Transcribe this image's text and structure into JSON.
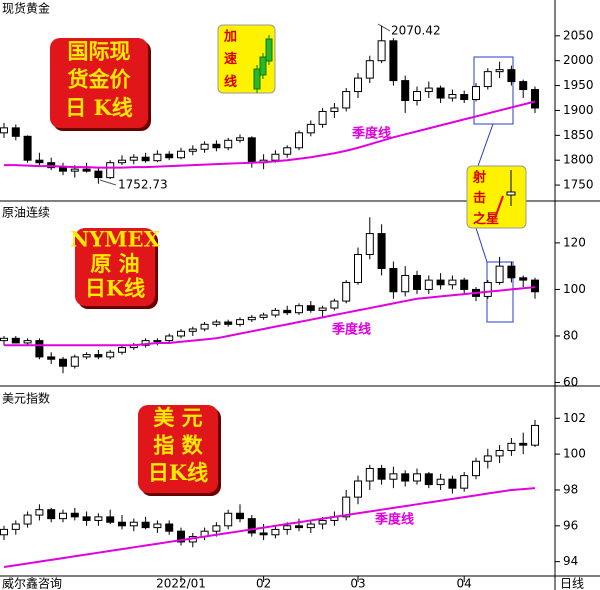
{
  "chart_data": [
    {
      "type": "candlestick",
      "title": "现货黄金",
      "badge": [
        "国际现",
        "货金价",
        "日 K线"
      ],
      "notes": [
        [
          "加",
          "速",
          "线"
        ],
        [
          "射",
          "击",
          "之星"
        ]
      ],
      "ylim": [
        1718,
        2122
      ],
      "yticks": [
        1750,
        1800,
        1850,
        1900,
        1950,
        2000,
        2050
      ],
      "up_color": "#ffffff",
      "down_color": "#000000",
      "ohlc": [
        [
          1855,
          1875,
          1845,
          1865
        ],
        [
          1865,
          1872,
          1840,
          1848
        ],
        [
          1848,
          1850,
          1795,
          1800
        ],
        [
          1800,
          1815,
          1790,
          1795
        ],
        [
          1795,
          1805,
          1780,
          1785
        ],
        [
          1785,
          1795,
          1770,
          1778
        ],
        [
          1778,
          1790,
          1765,
          1782
        ],
        [
          1782,
          1795,
          1775,
          1778
        ],
        [
          1778,
          1785,
          1752.73,
          1765
        ],
        [
          1765,
          1800,
          1762,
          1795
        ],
        [
          1795,
          1810,
          1790,
          1800
        ],
        [
          1800,
          1812,
          1792,
          1806
        ],
        [
          1806,
          1815,
          1795,
          1799
        ],
        [
          1799,
          1820,
          1796,
          1812
        ],
        [
          1812,
          1818,
          1800,
          1805
        ],
        [
          1805,
          1825,
          1802,
          1818
        ],
        [
          1818,
          1830,
          1810,
          1822
        ],
        [
          1822,
          1838,
          1815,
          1832
        ],
        [
          1832,
          1840,
          1818,
          1825
        ],
        [
          1825,
          1845,
          1820,
          1840
        ],
        [
          1840,
          1852,
          1835,
          1845
        ],
        [
          1845,
          1848,
          1785,
          1795
        ],
        [
          1795,
          1812,
          1782,
          1800
        ],
        [
          1800,
          1820,
          1795,
          1812
        ],
        [
          1812,
          1830,
          1805,
          1825
        ],
        [
          1825,
          1860,
          1820,
          1855
        ],
        [
          1855,
          1880,
          1848,
          1872
        ],
        [
          1872,
          1905,
          1865,
          1898
        ],
        [
          1898,
          1915,
          1885,
          1905
        ],
        [
          1905,
          1945,
          1898,
          1938
        ],
        [
          1938,
          1975,
          1925,
          1965
        ],
        [
          1965,
          2010,
          1955,
          2000
        ],
        [
          2000,
          2070.42,
          1995,
          2040
        ],
        [
          2040,
          2045,
          1950,
          1960
        ],
        [
          1960,
          1970,
          1895,
          1920
        ],
        [
          1920,
          1948,
          1910,
          1938
        ],
        [
          1938,
          1958,
          1925,
          1945
        ],
        [
          1945,
          1950,
          1915,
          1925
        ],
        [
          1925,
          1942,
          1918,
          1932
        ],
        [
          1932,
          1940,
          1915,
          1922
        ],
        [
          1922,
          1955,
          1918,
          1948
        ],
        [
          1948,
          1985,
          1942,
          1978
        ],
        [
          1978,
          1998,
          1965,
          1982
        ],
        [
          1982,
          1990,
          1950,
          1958
        ],
        [
          1958,
          1962,
          1925,
          1942
        ],
        [
          1942,
          1948,
          1895,
          1905
        ]
      ],
      "series": [
        {
          "name": "季度线",
          "color": "#e000e0",
          "values": [
            1790,
            1790,
            1789,
            1788,
            1788,
            1787,
            1786,
            1786,
            1785,
            1785,
            1785,
            1786,
            1786,
            1787,
            1788,
            1789,
            1790,
            1791,
            1792,
            1793,
            1794,
            1795,
            1796,
            1798,
            1800,
            1803,
            1806,
            1810,
            1814,
            1819,
            1825,
            1832,
            1839,
            1846,
            1852,
            1858,
            1864,
            1870,
            1876,
            1882,
            1888,
            1894,
            1900,
            1906,
            1912,
            1918
          ]
        }
      ]
    },
    {
      "type": "candlestick",
      "title": "原油连续",
      "badge": [
        "NYMEX",
        "原 油",
        "日K线"
      ],
      "ylim": [
        58.5,
        138
      ],
      "yticks": [
        60,
        80,
        100,
        120
      ],
      "up_color": "#ffffff",
      "down_color": "#000000",
      "ohlc": [
        [
          78,
          80,
          76,
          79
        ],
        [
          79,
          80,
          77,
          77
        ],
        [
          77,
          79,
          76,
          78
        ],
        [
          78,
          79,
          70,
          71
        ],
        [
          71,
          73,
          68,
          70
        ],
        [
          70,
          71,
          64,
          67
        ],
        [
          67,
          72,
          66,
          71
        ],
        [
          71,
          73,
          70,
          72
        ],
        [
          72,
          74,
          70,
          71
        ],
        [
          71,
          74,
          70,
          73
        ],
        [
          73,
          76,
          72,
          75
        ],
        [
          75,
          77,
          74,
          76
        ],
        [
          76,
          79,
          75,
          78
        ],
        [
          78,
          79,
          76,
          78
        ],
        [
          78,
          81,
          77,
          80
        ],
        [
          80,
          83,
          79,
          82
        ],
        [
          82,
          84,
          80,
          83
        ],
        [
          83,
          86,
          82,
          85
        ],
        [
          85,
          87,
          84,
          86
        ],
        [
          86,
          87,
          84,
          85
        ],
        [
          85,
          88,
          84,
          87
        ],
        [
          87,
          89,
          86,
          88
        ],
        [
          88,
          90,
          87,
          89
        ],
        [
          89,
          92,
          88,
          91
        ],
        [
          91,
          93,
          89,
          90
        ],
        [
          90,
          94,
          89,
          93
        ],
        [
          93,
          95,
          90,
          91
        ],
        [
          91,
          93,
          88,
          92
        ],
        [
          92,
          96,
          91,
          95
        ],
        [
          95,
          104,
          94,
          103
        ],
        [
          103,
          118,
          102,
          115
        ],
        [
          115,
          131,
          113,
          124
        ],
        [
          124,
          128,
          106,
          109
        ],
        [
          109,
          112,
          96,
          99
        ],
        [
          99,
          110,
          97,
          106
        ],
        [
          106,
          108,
          98,
          100
        ],
        [
          100,
          106,
          98,
          104
        ],
        [
          104,
          107,
          100,
          102
        ],
        [
          102,
          106,
          100,
          104
        ],
        [
          104,
          105,
          98,
          100
        ],
        [
          100,
          101,
          95,
          97
        ],
        [
          97,
          104,
          96,
          103
        ],
        [
          103,
          114,
          102,
          110
        ],
        [
          110,
          112,
          103,
          105
        ],
        [
          105,
          106,
          101,
          104
        ],
        [
          104,
          105,
          96,
          99
        ]
      ],
      "series": [
        {
          "name": "季度线",
          "color": "#e000e0",
          "values": [
            76,
            76,
            76,
            76,
            76,
            76,
            76,
            76,
            76,
            76,
            76,
            76,
            76.5,
            77,
            77,
            77.5,
            78,
            78.5,
            79,
            80,
            81,
            82,
            83,
            84,
            85,
            86,
            87,
            88,
            89,
            90,
            91,
            92,
            93,
            94,
            95,
            96,
            96.5,
            97,
            97.5,
            98,
            98.5,
            99,
            99.5,
            100,
            100.5,
            101
          ]
        }
      ]
    },
    {
      "type": "candlestick",
      "title": "美元指数",
      "badge": [
        "美  元",
        "指  数",
        "日K线"
      ],
      "ylim": [
        93.2,
        103.8
      ],
      "yticks": [
        94,
        96,
        98,
        100,
        102
      ],
      "up_color": "#ffffff",
      "down_color": "#000000",
      "categories": [
        null,
        null,
        null,
        null,
        null,
        null,
        null,
        null,
        null,
        null,
        null,
        null,
        null,
        null,
        null,
        "2022/01",
        null,
        null,
        null,
        null,
        null,
        null,
        "02",
        null,
        null,
        null,
        null,
        null,
        null,
        null,
        "03",
        null,
        null,
        null,
        null,
        null,
        null,
        null,
        null,
        "04",
        null,
        null,
        null,
        null,
        null,
        null
      ],
      "xlabel": "日线",
      "source": "威尔鑫咨询",
      "ohlc": [
        [
          95.5,
          96.0,
          95.2,
          95.8
        ],
        [
          95.8,
          96.3,
          95.5,
          96.1
        ],
        [
          96.1,
          96.8,
          95.9,
          96.6
        ],
        [
          96.6,
          97.2,
          96.3,
          96.9
        ],
        [
          96.9,
          97.0,
          96.2,
          96.4
        ],
        [
          96.4,
          96.9,
          96.2,
          96.7
        ],
        [
          96.7,
          97.0,
          96.3,
          96.5
        ],
        [
          96.5,
          96.8,
          96.0,
          96.3
        ],
        [
          96.3,
          96.7,
          96.0,
          96.5
        ],
        [
          96.5,
          96.9,
          96.1,
          96.2
        ],
        [
          96.2,
          96.6,
          95.8,
          96.0
        ],
        [
          96.0,
          96.4,
          95.7,
          96.2
        ],
        [
          96.2,
          96.5,
          95.8,
          95.9
        ],
        [
          95.9,
          96.3,
          95.6,
          96.1
        ],
        [
          96.1,
          96.3,
          95.5,
          95.7
        ],
        [
          95.7,
          95.9,
          94.9,
          95.1
        ],
        [
          95.1,
          95.6,
          94.8,
          95.4
        ],
        [
          95.4,
          95.9,
          95.2,
          95.7
        ],
        [
          95.7,
          96.2,
          95.4,
          96.0
        ],
        [
          96.0,
          96.9,
          95.8,
          96.7
        ],
        [
          96.7,
          97.2,
          96.2,
          96.4
        ],
        [
          96.4,
          96.6,
          95.4,
          95.6
        ],
        [
          95.6,
          96.1,
          95.2,
          95.5
        ],
        [
          95.5,
          96.0,
          95.3,
          95.8
        ],
        [
          95.8,
          96.2,
          95.5,
          96.0
        ],
        [
          96.0,
          96.4,
          95.7,
          95.9
        ],
        [
          95.9,
          96.3,
          95.6,
          96.1
        ],
        [
          96.1,
          96.5,
          95.8,
          96.3
        ],
        [
          96.3,
          96.8,
          96.0,
          96.5
        ],
        [
          96.5,
          98.0,
          96.3,
          97.6
        ],
        [
          97.6,
          98.8,
          97.2,
          98.5
        ],
        [
          98.5,
          99.4,
          98.0,
          99.2
        ],
        [
          99.2,
          99.4,
          98.3,
          98.6
        ],
        [
          98.6,
          99.3,
          98.1,
          98.9
        ],
        [
          98.9,
          99.1,
          98.2,
          98.5
        ],
        [
          98.5,
          99.2,
          98.3,
          98.9
        ],
        [
          98.9,
          99.0,
          98.1,
          98.3
        ],
        [
          98.3,
          98.9,
          98.0,
          98.6
        ],
        [
          98.6,
          98.8,
          97.8,
          98.1
        ],
        [
          98.1,
          99.0,
          97.9,
          98.8
        ],
        [
          98.8,
          99.8,
          98.6,
          99.6
        ],
        [
          99.6,
          100.3,
          99.2,
          99.9
        ],
        [
          99.9,
          100.5,
          99.5,
          100.2
        ],
        [
          100.2,
          100.9,
          99.9,
          100.6
        ],
        [
          100.6,
          101.2,
          100.0,
          100.5
        ],
        [
          100.5,
          101.9,
          100.4,
          101.6
        ]
      ],
      "series": [
        {
          "name": "季度线",
          "color": "#e000e0",
          "values": [
            93.7,
            93.8,
            93.9,
            94.0,
            94.1,
            94.2,
            94.3,
            94.4,
            94.5,
            94.6,
            94.7,
            94.8,
            94.9,
            95.0,
            95.1,
            95.2,
            95.3,
            95.4,
            95.5,
            95.6,
            95.7,
            95.8,
            95.9,
            96.0,
            96.1,
            96.2,
            96.3,
            96.4,
            96.5,
            96.6,
            96.7,
            96.8,
            96.9,
            97.0,
            97.1,
            97.2,
            97.3,
            97.4,
            97.5,
            97.6,
            97.7,
            97.8,
            97.9,
            98.0,
            98.05,
            98.1
          ]
        }
      ]
    }
  ]
}
